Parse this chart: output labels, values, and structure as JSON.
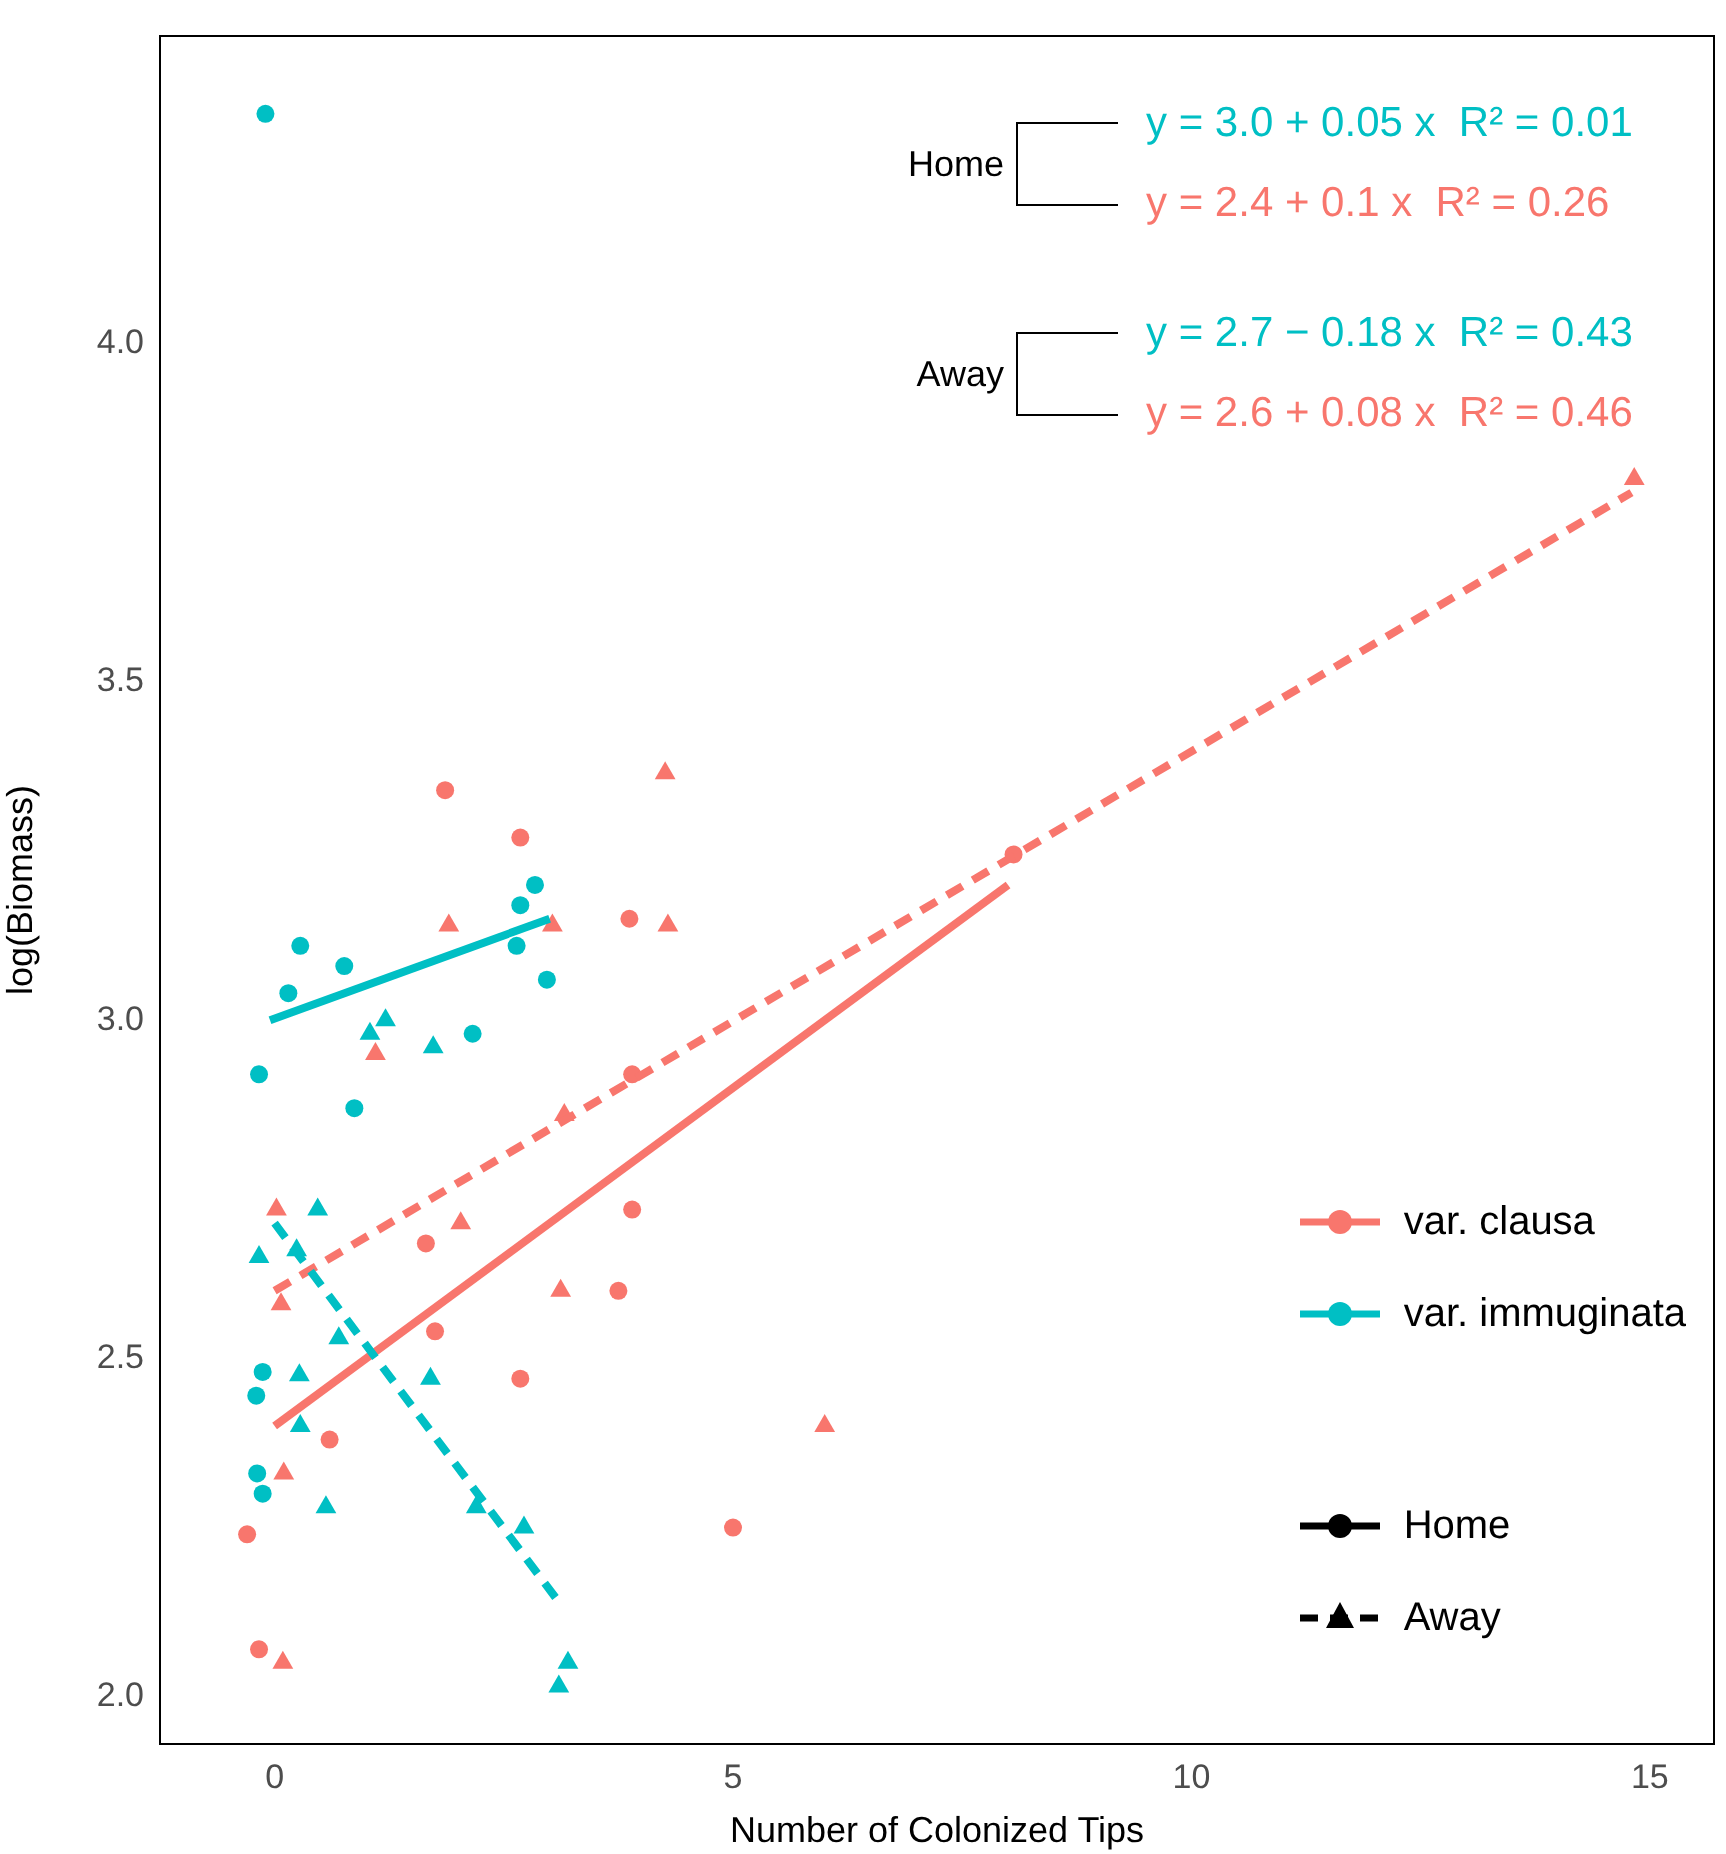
{
  "chart_data": {
    "type": "scatter",
    "xlabel": "Number of Colonized Tips",
    "ylabel": "log(Biomass)",
    "xlim": [
      -1.25,
      15.7
    ],
    "xticks": [
      0,
      5,
      10,
      15
    ],
    "ylim": [
      1.93,
      4.455
    ],
    "yticks": [
      {
        "value": 2,
        "label": "2.0"
      },
      {
        "value": 2.5,
        "label": "2.5"
      },
      {
        "value": 3,
        "label": "3.0"
      },
      {
        "value": 3.5,
        "label": "3.5"
      },
      {
        "value": 4,
        "label": "4.0"
      }
    ],
    "grid": false,
    "legend": "bottom right",
    "series": [
      {
        "name": "var. clausa",
        "color": "#f8766d",
        "marker": "circle",
        "line_style": "solid",
        "x": [
          -0.3,
          -0.17,
          0.6,
          1.65,
          1.75,
          2.68,
          3.75,
          3.9,
          5.0,
          1.86,
          2.68,
          3.87,
          3.9,
          8.06
        ],
        "values": [
          2.24,
          2.07,
          2.38,
          2.67,
          2.54,
          2.47,
          2.6,
          2.72,
          2.25,
          3.34,
          3.27,
          3.15,
          2.92,
          3.245
        ]
      },
      {
        "name": "var. immuginata",
        "color": "#00bfc4",
        "marker": "circle",
        "line_style": "solid",
        "x": [
          -0.1,
          0.28,
          0.76,
          0.15,
          -0.17,
          0.87,
          2.16,
          2.64,
          2.68,
          2.84,
          2.97,
          -0.13,
          -0.2,
          -0.19,
          -0.13
        ],
        "values": [
          4.34,
          3.11,
          3.08,
          3.04,
          2.92,
          2.87,
          2.98,
          3.11,
          3.17,
          3.2,
          3.06,
          2.48,
          2.445,
          2.33,
          2.3
        ]
      },
      {
        "color": "#f8766d",
        "marker": "triangle",
        "x": [
          4.26,
          1.9,
          3.03,
          4.29,
          1.1,
          3.16,
          0.02,
          2.03,
          0.07,
          3.12,
          6.0,
          0.1,
          0.09,
          14.83
        ],
        "values": [
          3.365,
          3.14,
          3.14,
          3.14,
          2.95,
          2.86,
          2.72,
          2.7,
          2.58,
          2.6,
          2.4,
          2.33,
          2.05,
          3.8
        ]
      },
      {
        "color": "#00bfc4",
        "marker": "triangle",
        "x": [
          1.21,
          1.04,
          1.73,
          0.47,
          -0.17,
          0.24,
          0.7,
          0.27,
          1.7,
          0.28,
          0.56,
          2.2,
          2.72,
          3.2,
          3.1
        ],
        "values": [
          3.0,
          2.98,
          2.96,
          2.72,
          2.65,
          2.66,
          2.53,
          2.475,
          2.47,
          2.4,
          2.28,
          2.28,
          2.25,
          2.05,
          2.015
        ]
      },
      {
        "type": "line",
        "color": "#f8766d",
        "marker": "none",
        "line_style": "solid",
        "x": [
          0,
          8
        ],
        "values": [
          2.4,
          3.2
        ]
      },
      {
        "type": "line",
        "color": "#00bfc4",
        "marker": "none",
        "line_style": "solid",
        "x": [
          -0.05,
          3
        ],
        "values": [
          3.0,
          3.15
        ]
      },
      {
        "type": "line",
        "color": "#f8766d",
        "marker": "none",
        "line_style": "dashed",
        "x": [
          0,
          14.8
        ],
        "values": [
          2.6,
          3.78
        ]
      },
      {
        "type": "line",
        "color": "#00bfc4",
        "marker": "none",
        "line_style": "dashed",
        "x": [
          0,
          3.1
        ],
        "values": [
          2.7,
          2.14
        ]
      },
      {
        "name": "Home",
        "color": "#000000",
        "marker": "circle",
        "line_style": "solid"
      },
      {
        "name": "Away",
        "color": "#000000",
        "marker": "triangle",
        "line_style": "dashed"
      }
    ],
    "annotations": [
      "Home",
      "y = 3.0 + 0.05 x  R² = 0.01",
      "y = 2.4 + 0.1 x  R² = 0.26",
      "Away",
      "y = 2.7 − 0.18 x  R² = 0.43",
      "y = 2.6 + 0.08 x  R² = 0.46"
    ]
  }
}
